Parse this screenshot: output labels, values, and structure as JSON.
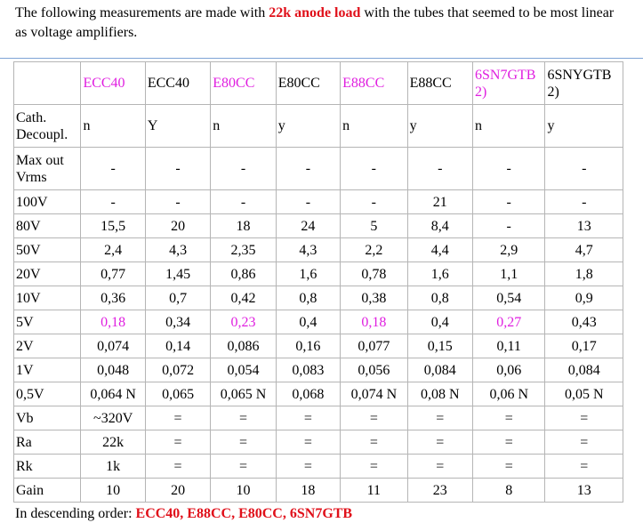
{
  "intro": {
    "before": "The following measurements are made with",
    "highlight": "22k anode load",
    "after": "with the tubes that seemed to be most linear as voltage amplifiers."
  },
  "table": {
    "columns": [
      "ECC40",
      "ECC40",
      "E80CC",
      "E80CC",
      "E88CC",
      "E88CC",
      "6SN7GTB 2)",
      "6SNYGTB 2)"
    ],
    "rows": [
      {
        "label": "Cath. Decoupl.",
        "cells": [
          "n",
          "Y",
          "n",
          "y",
          "n",
          "y",
          "n",
          "y"
        ]
      },
      {
        "label": "Max out Vrms",
        "cells": [
          "-",
          "-",
          "-",
          "-",
          "-",
          "-",
          "-",
          "-"
        ]
      },
      {
        "label": "100V",
        "cells": [
          "-",
          "-",
          "-",
          "-",
          "-",
          "21",
          "-",
          "-"
        ]
      },
      {
        "label": "80V",
        "cells": [
          "15,5",
          "20",
          "18",
          "24",
          "5",
          "8,4",
          "-",
          "13"
        ]
      },
      {
        "label": "50V",
        "cells": [
          "2,4",
          "4,3",
          "2,35",
          "4,3",
          "2,2",
          "4,4",
          "2,9",
          "4,7"
        ]
      },
      {
        "label": "20V",
        "cells": [
          "0,77",
          "1,45",
          "0,86",
          "1,6",
          "0,78",
          "1,6",
          "1,1",
          "1,8"
        ]
      },
      {
        "label": "10V",
        "cells": [
          "0,36",
          "0,7",
          "0,42",
          "0,8",
          "0,38",
          "0,8",
          "0,54",
          "0,9"
        ]
      },
      {
        "label": "5V",
        "cells": [
          "0,18",
          "0,34",
          "0,23",
          "0,4",
          "0,18",
          "0,4",
          "0,27",
          "0,43"
        ]
      },
      {
        "label": "2V",
        "cells": [
          "0,074",
          "0,14",
          "0,086",
          "0,16",
          "0,077",
          "0,15",
          "0,11",
          "0,17"
        ]
      },
      {
        "label": "1V",
        "cells": [
          "0,048",
          "0,072",
          "0,054",
          "0,083",
          "0,056",
          "0,084",
          "0,06",
          "0,084"
        ]
      },
      {
        "label": "0,5V",
        "cells": [
          "0,064 N",
          "0,065",
          "0,065 N",
          "0,068",
          "0,074 N",
          "0,08 N",
          "0,06 N",
          "0,05 N"
        ]
      },
      {
        "label": "Vb",
        "cells": [
          "~320V",
          "=",
          "=",
          "=",
          "=",
          "=",
          "=",
          "="
        ]
      },
      {
        "label": "Ra",
        "cells": [
          "22k",
          "=",
          "=",
          "=",
          "=",
          "=",
          "=",
          "="
        ]
      },
      {
        "label": "Rk",
        "cells": [
          "1k",
          "=",
          "=",
          "=",
          "=",
          "=",
          "=",
          "="
        ]
      },
      {
        "label": "Gain",
        "cells": [
          "10",
          "20",
          "10",
          "18",
          "11",
          "23",
          "8",
          "13"
        ]
      }
    ]
  },
  "footer": {
    "before": "In descending order:",
    "highlight": "ECC40, E88CC, E80CC, 6SN7GTB"
  }
}
